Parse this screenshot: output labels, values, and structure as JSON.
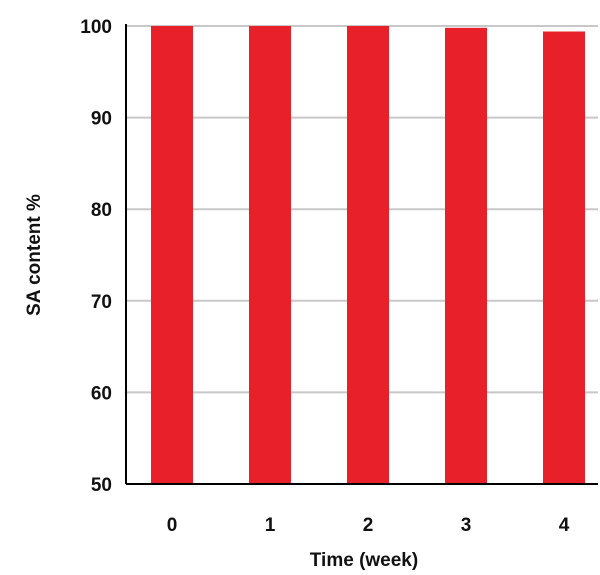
{
  "chart_data": {
    "type": "bar",
    "categories": [
      "0",
      "1",
      "2",
      "3",
      "4"
    ],
    "values": [
      100,
      100,
      100,
      99.8,
      99.4
    ],
    "title": "",
    "xlabel": "Time (week)",
    "ylabel": "SA content %",
    "ylim": [
      50,
      100
    ],
    "yticks": [
      50,
      60,
      70,
      80,
      90,
      100
    ],
    "grid": true,
    "legend": "none",
    "colors": {
      "bar": "#e8202a",
      "grid": "#c8c8c8",
      "axis": "#000000"
    }
  }
}
